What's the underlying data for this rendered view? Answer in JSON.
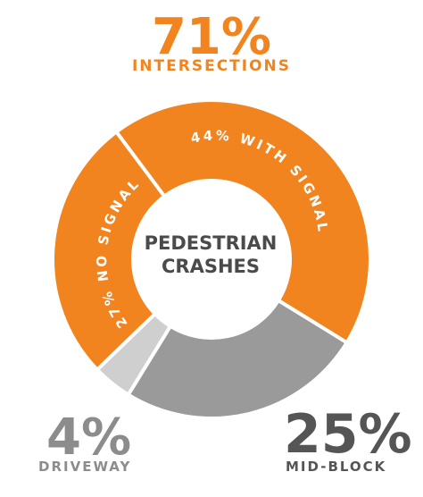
{
  "chart_data": {
    "type": "pie",
    "categories": [
      "No signal",
      "With signal",
      "Mid-block",
      "Driveway"
    ],
    "slices": [
      {
        "key": "no-signal",
        "label": "27% NO SIGNAL",
        "value": 27,
        "color": "#F2841F"
      },
      {
        "key": "with-signal",
        "label": "44% WITH SIGNAL",
        "value": 44,
        "color": "#F2841F"
      },
      {
        "key": "mid-block",
        "label": "",
        "value": 25,
        "color": "#9A9A9A"
      },
      {
        "key": "driveway",
        "label": "",
        "value": 4,
        "color": "#CFCFCF"
      }
    ],
    "center_label": [
      "PEDESTRIAN",
      "CRASHES"
    ],
    "callouts": {
      "intersections": {
        "percent": "71%",
        "label": "INTERSECTIONS",
        "color": "#F2841F"
      },
      "driveway": {
        "percent": "4%",
        "label": "DRIVEWAY",
        "color": "#8C8C8C"
      },
      "mid_block": {
        "percent": "25%",
        "label": "MID-BLOCK",
        "color": "#555555"
      }
    }
  }
}
